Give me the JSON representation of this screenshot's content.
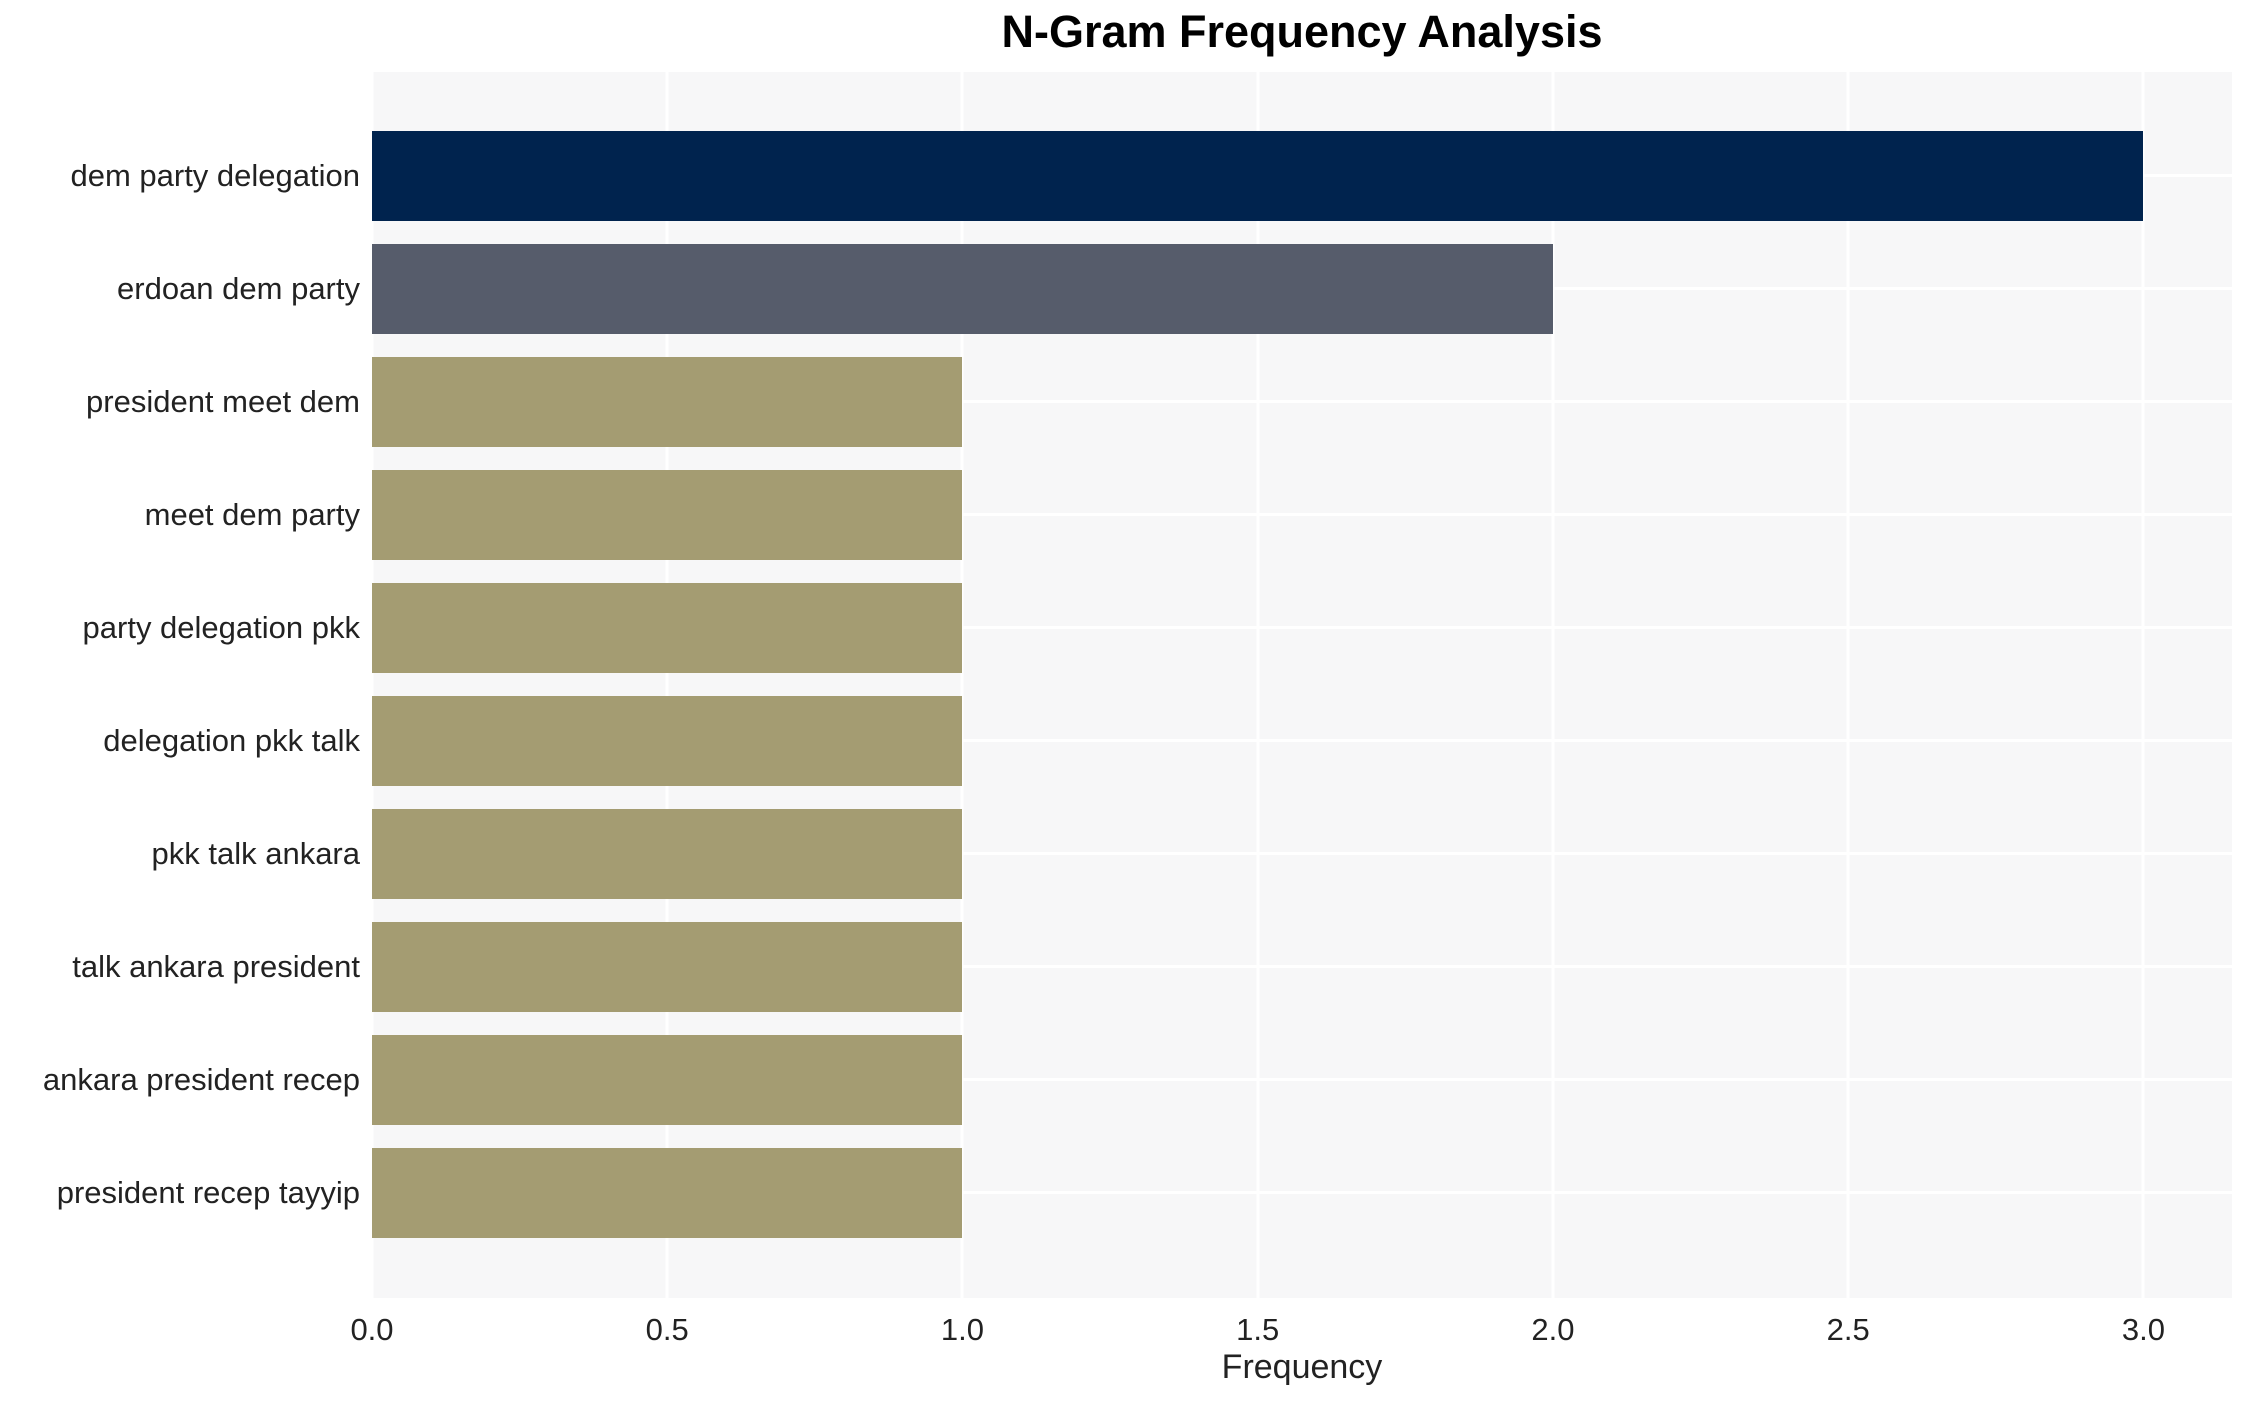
{
  "page": {
    "background": "#ffffff",
    "plot_background": "#f7f7f8",
    "gridline_color": "#ffffff",
    "text_color": "#222222",
    "title_color": "#000000"
  },
  "chart_data": {
    "type": "bar",
    "orientation": "horizontal",
    "title": "N-Gram Frequency Analysis",
    "xlabel": "Frequency",
    "ylabel": "",
    "categories": [
      "dem party delegation",
      "erdoan dem party",
      "president meet dem",
      "meet dem party",
      "party delegation pkk",
      "delegation pkk talk",
      "pkk talk ankara",
      "talk ankara president",
      "ankara president recep",
      "president recep tayyip"
    ],
    "values": [
      3,
      2,
      1,
      1,
      1,
      1,
      1,
      1,
      1,
      1
    ],
    "bar_colors": [
      "#00234e",
      "#565c6b",
      "#a49c72",
      "#a49c72",
      "#a49c72",
      "#a49c72",
      "#a49c72",
      "#a49c72",
      "#a49c72",
      "#a49c72"
    ],
    "xlim": [
      0,
      3.15
    ],
    "xtick_labels": [
      "0.0",
      "0.5",
      "1.0",
      "1.5",
      "2.0",
      "2.5",
      "3.0"
    ],
    "xtick_values": [
      0,
      0.5,
      1,
      1.5,
      2,
      2.5,
      3
    ],
    "grid": "white gridlines at x ticks and bar centers, drawn below bars",
    "legend_position": "none"
  }
}
